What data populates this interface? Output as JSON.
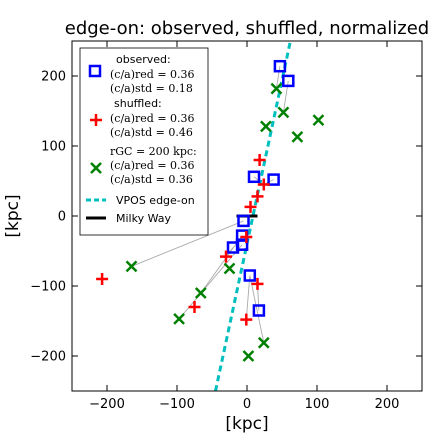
{
  "chart_data": {
    "type": "scatter",
    "title": "edge-on: observed, shuffled, normalized",
    "xlabel": "[kpc]",
    "ylabel": "[kpc]",
    "xlim": [
      -250,
      250
    ],
    "ylim": [
      -250,
      250
    ],
    "xticks": [
      -200,
      -100,
      0,
      100,
      200
    ],
    "yticks": [
      -200,
      -100,
      0,
      100,
      200
    ],
    "tick_labels_x": [
      "−200",
      "−100",
      "0",
      "100",
      "200"
    ],
    "tick_labels_y": [
      "−200",
      "−100",
      "0",
      "100",
      "200"
    ],
    "grid": false,
    "legend_position": "top-left",
    "legend": {
      "observed": {
        "name": "observed:",
        "red": "(c/a)red = 0.36",
        "std": "(c/a)std = 0.18"
      },
      "shuffled": {
        "name": "shuffled:",
        "red": "(c/a)red = 0.36",
        "std": "(c/a)std = 0.46"
      },
      "normalized": {
        "name": "rGC = 200 kpc:",
        "red": "(c/a)red = 0.36",
        "std": "(c/a)std = 0.36"
      },
      "vpos": "VPOS edge-on",
      "milky_way": "Milky Way"
    },
    "colors": {
      "observed": "#0000ff",
      "shuffled": "#ff0000",
      "normalized": "#008000",
      "vpos": "#00bfbf",
      "milky_way": "#000000",
      "connector": "#aaaaaa"
    },
    "series": [
      {
        "name": "observed",
        "marker": "square",
        "points": [
          [
            47,
            214
          ],
          [
            59,
            193
          ],
          [
            10,
            56
          ],
          [
            38,
            52
          ],
          [
            -5,
            -7
          ],
          [
            -7,
            -28
          ],
          [
            -7,
            -41
          ],
          [
            -20,
            -45
          ],
          [
            4,
            -85
          ],
          [
            17,
            -135
          ]
        ]
      },
      {
        "name": "shuffled",
        "marker": "plus",
        "points": [
          [
            18,
            80
          ],
          [
            24,
            45
          ],
          [
            15,
            28
          ],
          [
            5,
            13
          ],
          [
            -1,
            -30
          ],
          [
            -30,
            -58
          ],
          [
            15,
            -97
          ],
          [
            -1,
            -148
          ],
          [
            -75,
            -130
          ],
          [
            -207,
            -90
          ]
        ]
      },
      {
        "name": "normalized",
        "marker": "x",
        "points": [
          [
            42,
            182
          ],
          [
            52,
            148
          ],
          [
            27,
            128
          ],
          [
            102,
            137
          ],
          [
            72,
            113
          ],
          [
            -25,
            -75
          ],
          [
            -66,
            -110
          ],
          [
            -97,
            -147
          ],
          [
            -165,
            -72
          ],
          [
            24,
            -181
          ],
          [
            2,
            -200
          ]
        ]
      }
    ],
    "connectors": [
      [
        [
          47,
          214
        ],
        [
          42,
          182
        ]
      ],
      [
        [
          59,
          193
        ],
        [
          52,
          148
        ]
      ],
      [
        [
          10,
          56
        ],
        [
          24,
          45
        ]
      ],
      [
        [
          38,
          52
        ],
        [
          24,
          45
        ]
      ],
      [
        [
          -5,
          -7
        ],
        [
          -165,
          -72
        ]
      ],
      [
        [
          -7,
          -28
        ],
        [
          -66,
          -110
        ]
      ],
      [
        [
          -20,
          -45
        ],
        [
          -30,
          -58
        ]
      ],
      [
        [
          4,
          -85
        ],
        [
          24,
          -181
        ]
      ],
      [
        [
          17,
          -135
        ],
        [
          15,
          -97
        ]
      ],
      [
        [
          -7,
          -41
        ],
        [
          -97,
          -147
        ]
      ],
      [
        [
          4,
          -85
        ],
        [
          -1,
          -148
        ]
      ]
    ],
    "vpos_line": [
      [
        -45,
        -250
      ],
      [
        62,
        250
      ]
    ],
    "milky_way_line": [
      [
        -15,
        0
      ],
      [
        15,
        0
      ]
    ]
  }
}
